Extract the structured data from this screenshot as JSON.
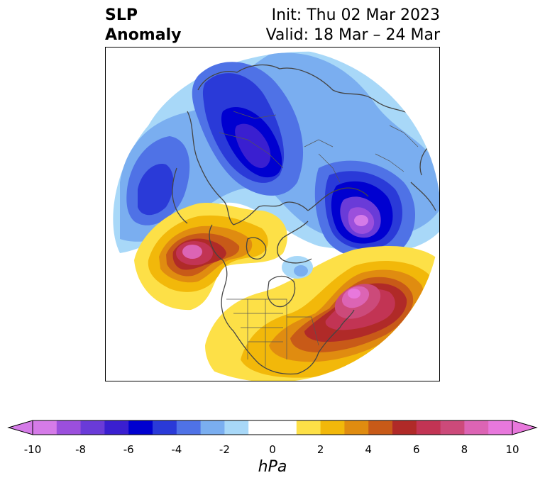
{
  "title": {
    "line1_left": "SLP",
    "line2_left": "Anomaly",
    "line1_right": "Init: Thu 02 Mar 2023",
    "line2_right": "Valid: 18 Mar – 24 Mar"
  },
  "map": {
    "projection": "north-polar-stereographic",
    "field": "sea level pressure anomaly",
    "features": [
      {
        "kind": "low",
        "region": "Eurasia / Scandinavia-Siberia",
        "value": -6
      },
      {
        "kind": "low",
        "region": "North Pacific / Sea of Okhotsk",
        "value": -7
      },
      {
        "kind": "low",
        "region": "Eastern Siberia / Kamchatka",
        "value": -4
      },
      {
        "kind": "high",
        "region": "Western Atlantic off US East Coast",
        "value": 10
      },
      {
        "kind": "high",
        "region": "North Atlantic / Greenland-Iceland",
        "value": 7
      },
      {
        "kind": "low",
        "region": "Hudson Bay",
        "value": -2
      }
    ]
  },
  "colorbar": {
    "label": "hPa",
    "ticks": [
      "-10",
      "-8",
      "-6",
      "-4",
      "-2",
      "0",
      "2",
      "4",
      "6",
      "8",
      "10"
    ],
    "colors": [
      "#d57be8",
      "#9b4fdc",
      "#6a3bd8",
      "#3a1fd0",
      "#0000d0",
      "#2a3ad8",
      "#4f72e6",
      "#7aaef0",
      "#a8d8f8",
      "#ffffff",
      "#ffffff",
      "#fde047",
      "#f2b80a",
      "#e08c10",
      "#c85a18",
      "#b02a28",
      "#c23454",
      "#cc4a7a",
      "#dc64b4",
      "#e878dc"
    ],
    "extend": "both"
  }
}
